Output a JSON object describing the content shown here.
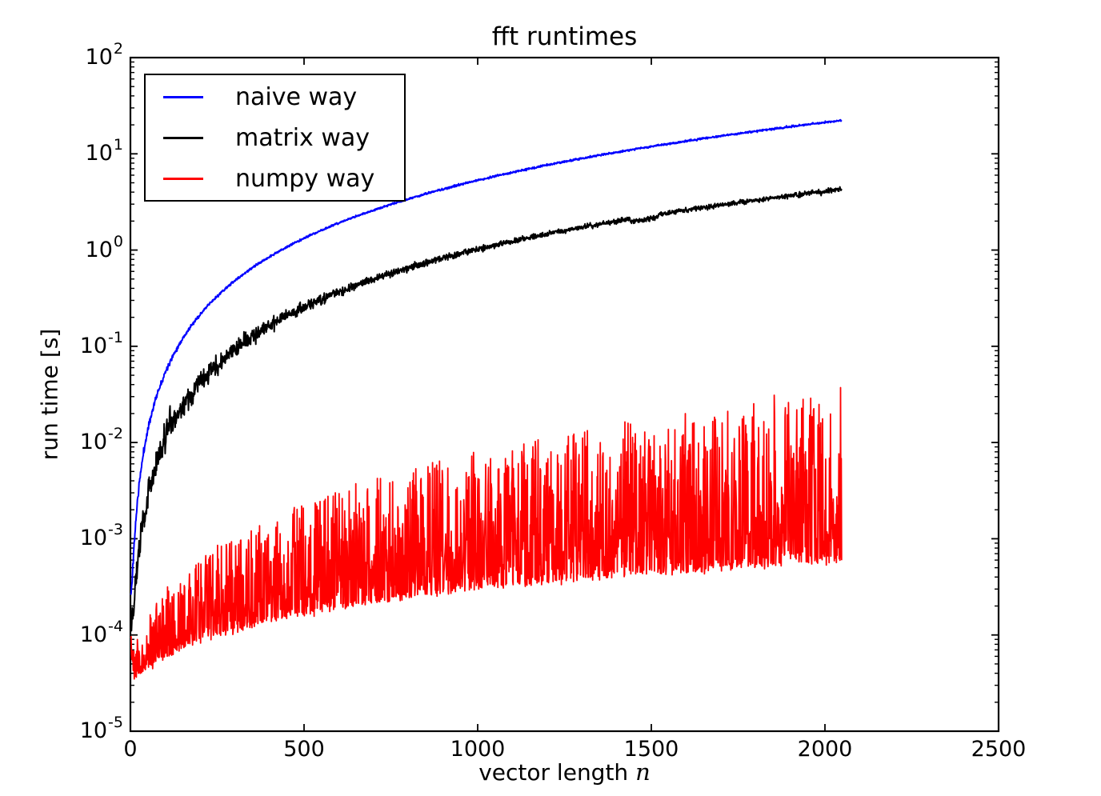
{
  "chart_data": {
    "type": "line",
    "title": "fft runtimes",
    "xlabel": "vector length ",
    "xlabel_math_symbol": "n",
    "ylabel": "run time [s]",
    "x_axis": {
      "min": 0,
      "max": 2500,
      "ticks": [
        0,
        500,
        1000,
        1500,
        2000,
        2500
      ]
    },
    "y_axis": {
      "scale": "log",
      "min_exponent": -5,
      "max_exponent": 2,
      "tick_label_base": "10",
      "tick_exponents": [
        2,
        1,
        0,
        -1,
        -2,
        -3,
        -4,
        -5
      ],
      "minor_tick_multiples": [
        2,
        3,
        4,
        5,
        6,
        7,
        8,
        9
      ]
    },
    "grid": false,
    "legend": {
      "position": "upper left"
    },
    "x_data_range": [
      1,
      2048
    ],
    "series": [
      {
        "name": "naive way",
        "color": "#0000ff",
        "line_width": 2.0,
        "model": {
          "kind": "quadratic",
          "overhead_s": 0.00025,
          "coeff_s": 5.3e-06,
          "noise_dex_base": 0.005,
          "noise_dex_start": 0.02,
          "noise_decay_n": 100,
          "seed": 11
        },
        "key_points": [
          [
            1,
            0.00026
          ],
          [
            100,
            0.053
          ],
          [
            500,
            1.33
          ],
          [
            1000,
            5.3
          ],
          [
            1500,
            11.9
          ],
          [
            2048,
            22.2
          ]
        ]
      },
      {
        "name": "matrix way",
        "color": "#000000",
        "line_width": 2.0,
        "model": {
          "kind": "quadratic",
          "overhead_s": 0.00015,
          "coeff_s": 1.02e-06,
          "noise_dex_base": 0.012,
          "noise_dex_start": 0.08,
          "noise_decay_n": 300,
          "seed": 22,
          "spikes": [
            {
              "n": 104,
              "factor": 1.5,
              "width": 3
            },
            {
              "n": 113,
              "factor": 1.9,
              "width": 4
            }
          ],
          "dips": [
            {
              "from": 1440,
              "to": 1520,
              "factor": 0.93
            }
          ]
        },
        "key_points": [
          [
            1,
            0.00015
          ],
          [
            100,
            0.0104
          ],
          [
            500,
            0.26
          ],
          [
            1000,
            1.02
          ],
          [
            1500,
            2.3
          ],
          [
            2048,
            4.28
          ]
        ]
      },
      {
        "name": "numpy way",
        "color": "#ff0000",
        "line_width": 1.8,
        "model": {
          "kind": "fft_noisy",
          "floor_s": 3.2e-05,
          "startup_s": 8e-05,
          "startup_decay_n": 2.5,
          "slope_s_per_n": 2.7e-07,
          "spike_dex_max": 1.8,
          "spike_dex_pow": 0.32,
          "spike_shape": 2.2,
          "jitter_dex": 0.02,
          "seed": 33
        },
        "envelope_low": [
          [
            1,
            9e-05
          ],
          [
            10,
            3.2e-05
          ],
          [
            100,
            6e-05
          ],
          [
            500,
            0.00017
          ],
          [
            1000,
            0.0003
          ],
          [
            1500,
            0.00044
          ],
          [
            2048,
            0.00059
          ]
        ],
        "envelope_high": [
          [
            100,
            0.00029
          ],
          [
            500,
            0.0024
          ],
          [
            1000,
            0.01
          ],
          [
            1500,
            0.018
          ],
          [
            2048,
            0.037
          ]
        ]
      }
    ]
  }
}
